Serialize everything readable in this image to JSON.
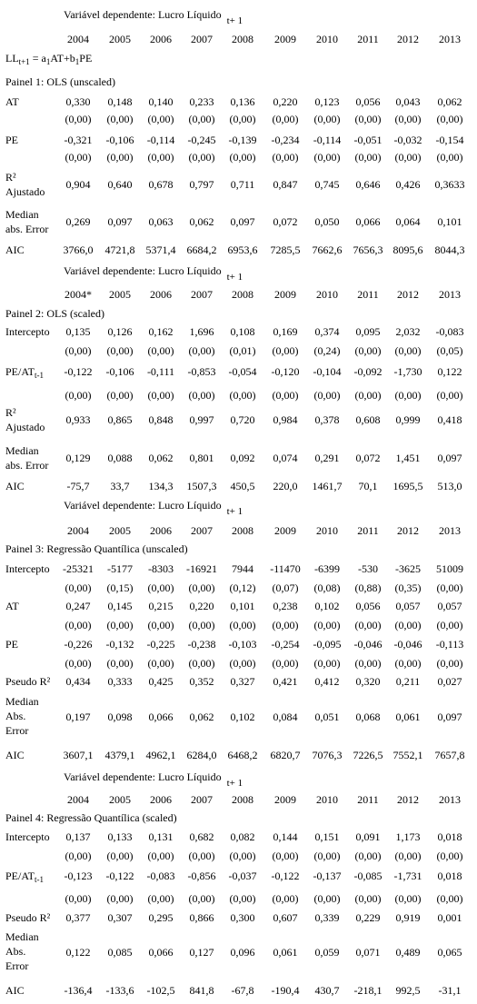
{
  "years": [
    "2004",
    "2005",
    "2006",
    "2007",
    "2008",
    "2009",
    "2010",
    "2011",
    "2012",
    "2013"
  ],
  "years_p2": [
    "2004*",
    "2005",
    "2006",
    "2007",
    "2008",
    "2009",
    "2010",
    "2011",
    "2012",
    "2013"
  ],
  "dependent_var": {
    "label": "Variável dependente: Lucro Líquido",
    "sub": "t+ 1"
  },
  "model": {
    "lhs": "LL",
    "lhs_sub": "t+1",
    "eq": " = a",
    "a_sub": "1",
    "mid": "AT+b",
    "b_sub": "1",
    "tail": "PE"
  },
  "panel1": {
    "title": "Painel 1: OLS (unscaled)",
    "rows": [
      {
        "label": "AT",
        "values": [
          "0,330",
          "0,148",
          "0,140",
          "0,233",
          "0,136",
          "0,220",
          "0,123",
          "0,056",
          "0,043",
          "0,062"
        ]
      },
      {
        "label": "",
        "values": [
          "(0,00)",
          "(0,00)",
          "(0,00)",
          "(0,00)",
          "(0,00)",
          "(0,00)",
          "(0,00)",
          "(0,00)",
          "(0,00)",
          "(0,00)"
        ]
      },
      {
        "label": "PE",
        "values": [
          "-0,321",
          "-0,106",
          "-0,114",
          "-0,245",
          "-0,139",
          "-0,234",
          "-0,114",
          "-0,051",
          "-0,032",
          "-0,154"
        ]
      },
      {
        "label": "",
        "values": [
          "(0,00)",
          "(0,00)",
          "(0,00)",
          "(0,00)",
          "(0,00)",
          "(0,00)",
          "(0,00)",
          "(0,00)",
          "(0,00)",
          "(0,00)"
        ]
      },
      {
        "label_lines": [
          "R²",
          "Ajustado"
        ],
        "values": [
          "0,904",
          "0,640",
          "0,678",
          "0,797",
          "0,711",
          "0,847",
          "0,745",
          "0,646",
          "0,426",
          "0,3633"
        ]
      },
      {
        "label_lines": [
          "Median",
          "abs. Error"
        ],
        "values": [
          "0,269",
          "0,097",
          "0,063",
          "0,062",
          "0,097",
          "0,072",
          "0,050",
          "0,066",
          "0,064",
          "0,101"
        ]
      },
      {
        "label": "AIC",
        "values": [
          "3766,0",
          "4721,8",
          "5371,4",
          "6684,2",
          "6953,6",
          "7285,5",
          "7662,6",
          "7656,3",
          "8095,6",
          "8044,3"
        ]
      }
    ]
  },
  "panel2": {
    "title": "Painel 2: OLS (scaled)",
    "pe_label": "PE/AT",
    "pe_sub": "t-1",
    "rows": [
      {
        "label": "Intercepto",
        "values": [
          "0,135",
          "0,126",
          "0,162",
          "1,696",
          "0,108",
          "0,169",
          "0,374",
          "0,095",
          "2,032",
          "-0,083"
        ]
      },
      {
        "label": "",
        "values": [
          "(0,00)",
          "(0,00)",
          "(0,00)",
          "(0,00)",
          "(0,01)",
          "(0,00)",
          "(0,24)",
          "(0,00)",
          "(0,00)",
          "(0,05)"
        ]
      },
      {
        "label": "PE/AT",
        "values": [
          "-0,122",
          "-0,106",
          "-0,111",
          "-0,853",
          "-0,054",
          "-0,120",
          "-0,104",
          "-0,092",
          "-1,730",
          "0,122"
        ]
      },
      {
        "label": "",
        "values": [
          "(0,00)",
          "(0,00)",
          "(0,00)",
          "(0,00)",
          "(0,00)",
          "(0,00)",
          "(0,00)",
          "(0,00)",
          "(0,00)",
          "(0,00)"
        ]
      },
      {
        "label_lines": [
          "R²",
          "Ajustado"
        ],
        "values": [
          "0,933",
          "0,865",
          "0,848",
          "0,997",
          "0,720",
          "0,984",
          "0,378",
          "0,608",
          "0,999",
          "0,418"
        ]
      },
      {
        "label_lines": [
          "Median",
          "abs. Error"
        ],
        "values": [
          "0,129",
          "0,088",
          "0,062",
          "0,801",
          "0,092",
          "0,074",
          "0,291",
          "0,072",
          "1,451",
          "0,097"
        ]
      },
      {
        "label": "AIC",
        "values": [
          "-75,7",
          "33,7",
          "134,3",
          "1507,3",
          "450,5",
          "220,0",
          "1461,7",
          "70,1",
          "1695,5",
          "513,0"
        ]
      }
    ]
  },
  "panel3": {
    "title": "Painel 3: Regressão Quantílica (unscaled)",
    "rows": [
      {
        "label": "Intercepto",
        "values": [
          "-25321",
          "-5177",
          "-8303",
          "-16921",
          "7944",
          "-11470",
          "-6399",
          "-530",
          "-3625",
          "51009"
        ]
      },
      {
        "label": "",
        "values": [
          "(0,00)",
          "(0,15)",
          "(0,00)",
          "(0,00)",
          "(0,12)",
          "(0,07)",
          "(0,08)",
          "(0,88)",
          "(0,35)",
          "(0,00)"
        ]
      },
      {
        "label": "AT",
        "values": [
          "0,247",
          "0,145",
          "0,215",
          "0,220",
          "0,101",
          "0,238",
          "0,102",
          "0,056",
          "0,057",
          "0,057"
        ]
      },
      {
        "label": "",
        "values": [
          "(0,00)",
          "(0,00)",
          "(0,00)",
          "(0,00)",
          "(0,00)",
          "(0,00)",
          "(0,00)",
          "(0,00)",
          "(0,00)",
          "(0,00)"
        ]
      },
      {
        "label": "PE",
        "values": [
          "-0,226",
          "-0,132",
          "-0,225",
          "-0,238",
          "-0,103",
          "-0,254",
          "-0,095",
          "-0,046",
          "-0,046",
          "-0,113"
        ]
      },
      {
        "label": "",
        "values": [
          "(0,00)",
          "(0,00)",
          "(0,00)",
          "(0,00)",
          "(0,00)",
          "(0,00)",
          "(0,00)",
          "(0,00)",
          "(0,00)",
          "(0,00)"
        ]
      },
      {
        "label": "Pseudo R²",
        "values": [
          "0,434",
          "0,333",
          "0,425",
          "0,352",
          "0,327",
          "0,421",
          "0,412",
          "0,320",
          "0,211",
          "0,027"
        ]
      },
      {
        "label_lines": [
          "Median",
          "Abs.",
          "Error"
        ],
        "values": [
          "0,197",
          "0,098",
          "0,066",
          "0,062",
          "0,102",
          "0,084",
          "0,051",
          "0,068",
          "0,061",
          "0,097"
        ]
      },
      {
        "label": "AIC",
        "values": [
          "3607,1",
          "4379,1",
          "4962,1",
          "6284,0",
          "6468,2",
          "6820,7",
          "7076,3",
          "7226,5",
          "7552,1",
          "7657,8"
        ]
      }
    ]
  },
  "panel4": {
    "title": "Painel 4: Regressão Quantílica (scaled)",
    "pe_label": "PE/AT",
    "pe_sub": "t-1",
    "rows": [
      {
        "label": "Intercepto",
        "values": [
          "0,137",
          "0,133",
          "0,131",
          "0,682",
          "0,082",
          "0,144",
          "0,151",
          "0,091",
          "1,173",
          "0,018"
        ]
      },
      {
        "label": "",
        "values": [
          "(0,00)",
          "(0,00)",
          "(0,00)",
          "(0,00)",
          "(0,00)",
          "(0,00)",
          "(0,00)",
          "(0,00)",
          "(0,00)",
          "(0,00)"
        ]
      },
      {
        "label": "PE/AT",
        "values": [
          "-0,123",
          "-0,122",
          "-0,083",
          "-0,856",
          "-0,037",
          "-0,122",
          "-0,137",
          "-0,085",
          "-1,731",
          "0,018"
        ]
      },
      {
        "label": "",
        "values": [
          "(0,00)",
          "(0,00)",
          "(0,00)",
          "(0,00)",
          "(0,00)",
          "(0,00)",
          "(0,00)",
          "(0,00)",
          "(0,00)",
          "(0,00)"
        ]
      },
      {
        "label": "Pseudo R²",
        "values": [
          "0,377",
          "0,307",
          "0,295",
          "0,866",
          "0,300",
          "0,607",
          "0,339",
          "0,229",
          "0,919",
          "0,001"
        ]
      },
      {
        "label_lines": [
          "Median",
          "Abs.",
          "Error"
        ],
        "values": [
          "0,122",
          "0,085",
          "0,066",
          "0,127",
          "0,096",
          "0,061",
          "0,059",
          "0,071",
          "0,489",
          "0,065"
        ]
      },
      {
        "label": "AIC",
        "values": [
          "-136,4",
          "-133,6",
          "-102,5",
          "841,8",
          "-67,8",
          "-190,4",
          "430,7",
          "-218,1",
          "992,5",
          "-31,1"
        ]
      }
    ]
  }
}
